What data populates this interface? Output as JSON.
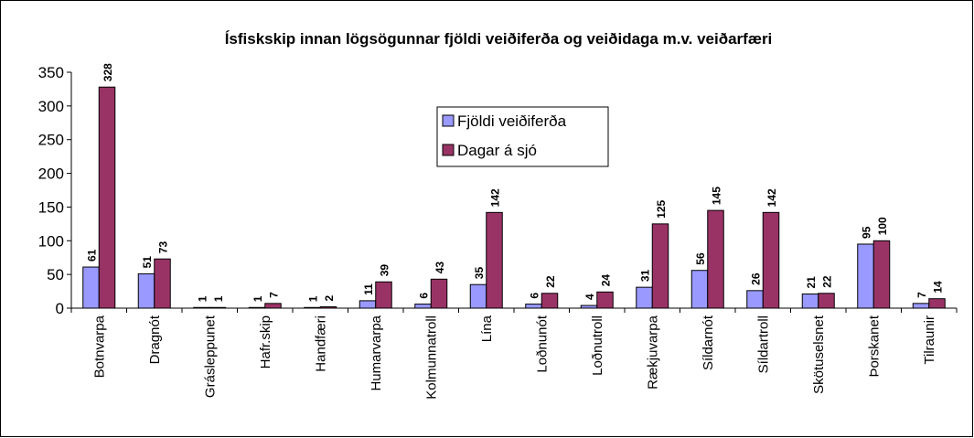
{
  "chart_data": {
    "type": "bar",
    "title": "Ísfiskskip innan lögsögunnar fjöldi veiðiferða og veiðidaga m.v. veiðarfæri",
    "categories": [
      "Botnvarpa",
      "Dragnót",
      "Grásleppunet",
      "Hafr.skip",
      "Handfæri",
      "Humarvarpa",
      "Kolmunnatroll",
      "Lína",
      "Loðnunót",
      "Loðnutroll",
      "Rækjuvarpa",
      "Síldarnót",
      "Síldartroll",
      "Skötuselsnet",
      "Þorskanet",
      "Tilraunir"
    ],
    "series": [
      {
        "name": "Fjöldi veiðiferða",
        "color": "#9999ff",
        "values": [
          61,
          51,
          1,
          1,
          1,
          11,
          6,
          35,
          6,
          4,
          31,
          56,
          26,
          21,
          95,
          7
        ]
      },
      {
        "name": "Dagar á sjó",
        "color": "#993366",
        "values": [
          328,
          73,
          1,
          7,
          2,
          39,
          43,
          142,
          22,
          24,
          125,
          145,
          142,
          22,
          100,
          14
        ]
      }
    ],
    "ylim": [
      0,
      350
    ],
    "yticks": [
      0,
      50,
      100,
      150,
      200,
      250,
      300,
      350
    ],
    "grid": false,
    "legend": "top-center"
  }
}
